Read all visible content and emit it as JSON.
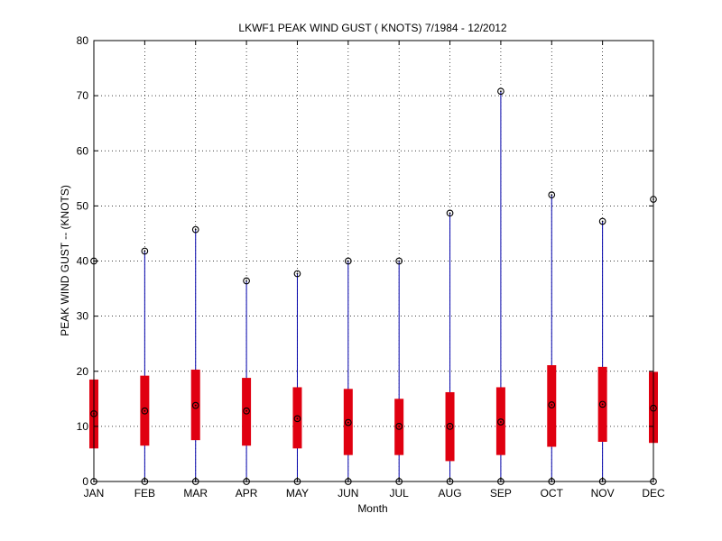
{
  "chart_data": {
    "type": "box",
    "title": "LKWF1  PEAK WIND GUST ( KNOTS) 7/1984 - 12/2012",
    "xlabel": "Month",
    "ylabel": "PEAK WIND GUST -- (KNOTS)",
    "ylim": [
      0,
      80
    ],
    "yticks": [
      0,
      10,
      20,
      30,
      40,
      50,
      60,
      70,
      80
    ],
    "grid": true,
    "categories": [
      "JAN",
      "FEB",
      "MAR",
      "APR",
      "MAY",
      "JUN",
      "JUL",
      "AUG",
      "SEP",
      "OCT",
      "NOV",
      "DEC"
    ],
    "min": [
      0,
      0,
      0,
      0,
      0,
      0,
      0,
      0,
      0,
      0,
      0,
      0
    ],
    "q1": [
      6.0,
      6.5,
      7.5,
      6.5,
      6.0,
      4.8,
      4.8,
      3.7,
      4.8,
      6.3,
      7.2,
      7.0
    ],
    "median": [
      12.3,
      12.8,
      13.8,
      12.8,
      11.4,
      10.7,
      10.0,
      10.0,
      10.8,
      13.9,
      14.0,
      13.3
    ],
    "q3": [
      18.5,
      19.2,
      20.3,
      18.8,
      17.1,
      16.8,
      15.0,
      16.2,
      17.1,
      21.1,
      20.8,
      19.9
    ],
    "max": [
      40.0,
      41.8,
      45.7,
      36.4,
      37.7,
      40.0,
      40.0,
      48.7,
      70.8,
      52.0,
      47.2,
      51.2
    ],
    "colors": {
      "whisker": "#0000aa",
      "box": "#e00010",
      "marker": "#000000",
      "grid": "#000000"
    }
  }
}
